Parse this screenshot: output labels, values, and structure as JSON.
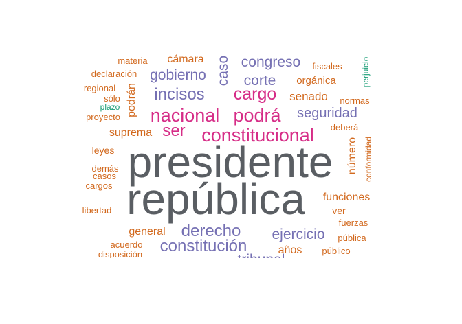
{
  "colors": {
    "dark": "#5a5e63",
    "magenta": "#d62d87",
    "purple": "#7570b3",
    "orange": "#d2691e",
    "teal": "#1b9e77"
  },
  "words": [
    {
      "text": "presidente",
      "color": "dark"
    },
    {
      "text": "república",
      "color": "dark"
    },
    {
      "text": "constitucional",
      "color": "magenta"
    },
    {
      "text": "nacional",
      "color": "magenta"
    },
    {
      "text": "podrá",
      "color": "magenta"
    },
    {
      "text": "cargo",
      "color": "magenta"
    },
    {
      "text": "ser",
      "color": "magenta"
    },
    {
      "text": "incisos",
      "color": "purple"
    },
    {
      "text": "gobierno",
      "color": "purple"
    },
    {
      "text": "congreso",
      "color": "purple"
    },
    {
      "text": "corte",
      "color": "purple"
    },
    {
      "text": "caso",
      "color": "purple"
    },
    {
      "text": "seguridad",
      "color": "purple"
    },
    {
      "text": "derecho",
      "color": "purple"
    },
    {
      "text": "constitución",
      "color": "purple"
    },
    {
      "text": "ejercicio",
      "color": "purple"
    },
    {
      "text": "tribunal",
      "color": "purple"
    },
    {
      "text": "cámara",
      "color": "orange"
    },
    {
      "text": "senado",
      "color": "orange"
    },
    {
      "text": "orgánica",
      "color": "orange"
    },
    {
      "text": "suprema",
      "color": "orange"
    },
    {
      "text": "podrán",
      "color": "orange"
    },
    {
      "text": "funciones",
      "color": "orange"
    },
    {
      "text": "general",
      "color": "orange"
    },
    {
      "text": "años",
      "color": "orange"
    },
    {
      "text": "número",
      "color": "orange"
    },
    {
      "text": "materia",
      "color": "orange"
    },
    {
      "text": "declaración",
      "color": "orange"
    },
    {
      "text": "regional",
      "color": "orange"
    },
    {
      "text": "sólo",
      "color": "orange"
    },
    {
      "text": "proyecto",
      "color": "orange"
    },
    {
      "text": "leyes",
      "color": "orange"
    },
    {
      "text": "demás",
      "color": "orange"
    },
    {
      "text": "casos",
      "color": "orange"
    },
    {
      "text": "cargos",
      "color": "orange"
    },
    {
      "text": "libertad",
      "color": "orange"
    },
    {
      "text": "acuerdo",
      "color": "orange"
    },
    {
      "text": "disposición",
      "color": "orange"
    },
    {
      "text": "fiscales",
      "color": "orange"
    },
    {
      "text": "normas",
      "color": "orange"
    },
    {
      "text": "deberá",
      "color": "orange"
    },
    {
      "text": "conformidad",
      "color": "orange"
    },
    {
      "text": "ver",
      "color": "orange"
    },
    {
      "text": "fuerzas",
      "color": "orange"
    },
    {
      "text": "pública",
      "color": "orange"
    },
    {
      "text": "público",
      "color": "orange"
    },
    {
      "text": "plazo",
      "color": "teal"
    },
    {
      "text": "perjuicio",
      "color": "teal"
    }
  ]
}
